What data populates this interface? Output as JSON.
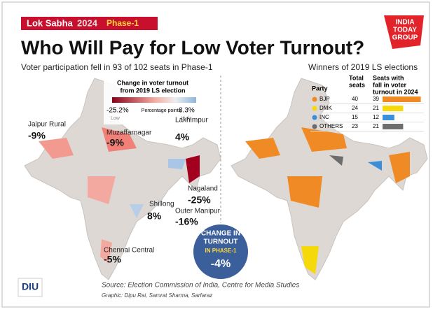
{
  "header": {
    "tag": "Lok Sabha",
    "tag_year": "2024",
    "tag_phase": "Phase-1",
    "title": "Who Will Pay for Low Voter Turnout?",
    "logo": [
      "INDIA",
      "TODAY",
      "GROUP"
    ]
  },
  "left": {
    "subtitle": "Voter participation fell in 93 of 102 seats in Phase-1",
    "scale": {
      "title": [
        "Change in voter turnout",
        "from 2019 LS election"
      ],
      "min": "-25.2%",
      "max": "8.3%",
      "middle": "Percentage points",
      "low": "Low",
      "high": "High"
    },
    "labels": [
      {
        "name": "Jaipur Rural",
        "value": "-9%"
      },
      {
        "name": "Muzaffarnagar",
        "value": "-9%"
      },
      {
        "name": "Lakhimpur",
        "value": "4%"
      },
      {
        "name": "Nagaland",
        "value": "-25%"
      },
      {
        "name": "Shillong",
        "value": "8%"
      },
      {
        "name": "Outer Manipur",
        "value": "-16%"
      },
      {
        "name": "Chennai Central",
        "value": "-5%"
      }
    ],
    "badge": [
      "CHANGE IN",
      "TURNOUT",
      "IN PHASE-1",
      "-4%"
    ]
  },
  "right": {
    "subtitle": "Winners of 2019 LS elections",
    "table": {
      "headers": [
        [
          "Party"
        ],
        [
          "Total",
          "seats"
        ],
        [
          "Seats with",
          "fall in voter",
          "turnout in 2024"
        ]
      ],
      "rows": [
        {
          "party": "BJP",
          "total": 40,
          "fell": 39,
          "color": "#f08a24"
        },
        {
          "party": "DMK",
          "total": 24,
          "fell": 21,
          "color": "#f5d90a"
        },
        {
          "party": "INC",
          "total": 15,
          "fell": 12,
          "color": "#3b8fd8"
        },
        {
          "party": "OTHERS",
          "total": 23,
          "fell": 21,
          "color": "#6d6d6d"
        }
      ]
    }
  },
  "footer": {
    "source": "Source: Election Commission of India, Centre for Media Studies",
    "credit": "Graphic: Dipu Rai, Samrat Sharma, Sarfaraz",
    "brand": "DIU"
  }
}
